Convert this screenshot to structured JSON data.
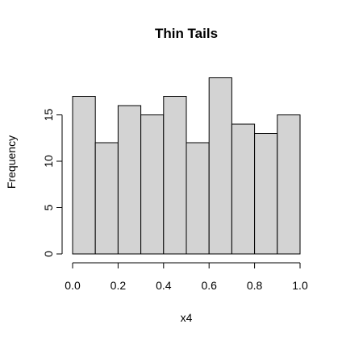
{
  "chart_data": {
    "type": "bar",
    "title": "Thin Tails",
    "xlabel": "x4",
    "ylabel": "Frequency",
    "bins": [
      {
        "x0": 0.0,
        "x1": 0.1,
        "count": 17
      },
      {
        "x0": 0.1,
        "x1": 0.2,
        "count": 12
      },
      {
        "x0": 0.2,
        "x1": 0.3,
        "count": 16
      },
      {
        "x0": 0.3,
        "x1": 0.4,
        "count": 15
      },
      {
        "x0": 0.4,
        "x1": 0.5,
        "count": 17
      },
      {
        "x0": 0.5,
        "x1": 0.6,
        "count": 12
      },
      {
        "x0": 0.6,
        "x1": 0.7,
        "count": 19
      },
      {
        "x0": 0.7,
        "x1": 0.8,
        "count": 14
      },
      {
        "x0": 0.8,
        "x1": 0.9,
        "count": 13
      },
      {
        "x0": 0.9,
        "x1": 1.0,
        "count": 15
      }
    ],
    "xticks": [
      {
        "value": 0.0,
        "label": "0.0"
      },
      {
        "value": 0.2,
        "label": "0.2"
      },
      {
        "value": 0.4,
        "label": "0.4"
      },
      {
        "value": 0.6,
        "label": "0.6"
      },
      {
        "value": 0.8,
        "label": "0.8"
      },
      {
        "value": 1.0,
        "label": "1.0"
      }
    ],
    "yticks": [
      {
        "value": 0,
        "label": "0"
      },
      {
        "value": 5,
        "label": "5"
      },
      {
        "value": 10,
        "label": "10"
      },
      {
        "value": 15,
        "label": "15"
      }
    ],
    "xlim": [
      0,
      1
    ],
    "ylim": [
      0,
      19
    ],
    "bar_color": "#d3d3d3",
    "grid": false,
    "legend": "none"
  }
}
